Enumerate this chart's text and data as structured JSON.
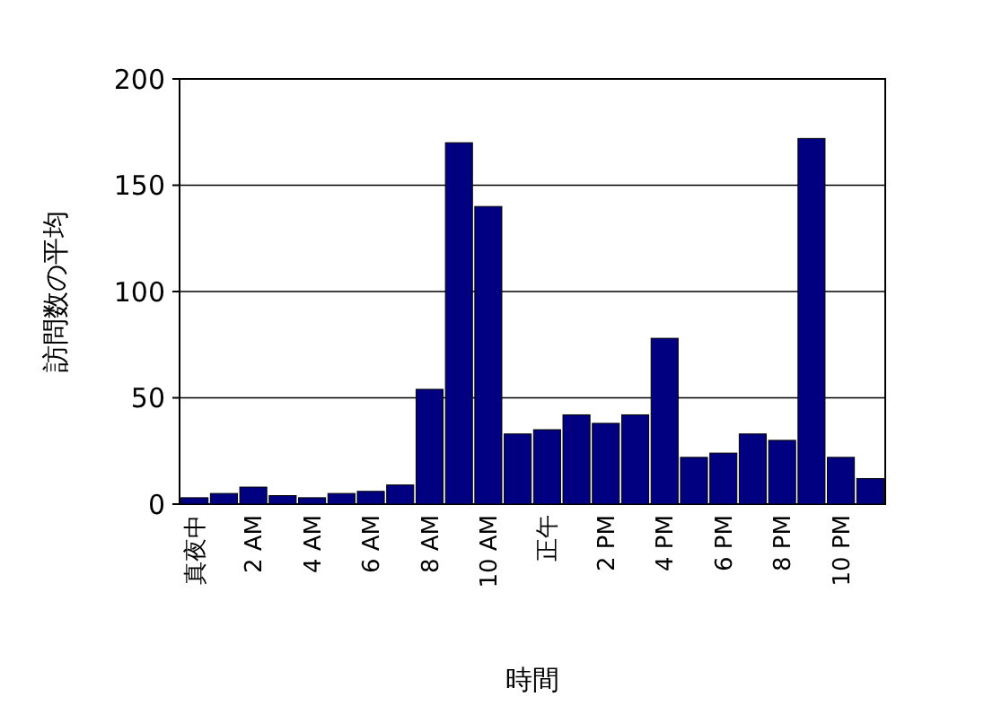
{
  "chart_data": {
    "type": "bar",
    "xlabel": "時間",
    "ylabel": "訪問数の平均",
    "categories": [
      "真夜中",
      null,
      "2 AM",
      null,
      "4 AM",
      null,
      "6 AM",
      null,
      "8 AM",
      null,
      "10 AM",
      null,
      "正午",
      null,
      "2 PM",
      null,
      "4 PM",
      null,
      "6 PM",
      null,
      "8 PM",
      null,
      "10 PM",
      null
    ],
    "values": [
      3,
      5,
      8,
      4,
      3,
      5,
      6,
      9,
      54,
      170,
      140,
      33,
      35,
      42,
      38,
      42,
      78,
      22,
      24,
      33,
      30,
      172,
      22,
      12
    ],
    "color": "#000080",
    "ylim": [
      0,
      200
    ],
    "yticks": [
      0,
      50,
      100,
      150,
      200
    ],
    "grid": "y"
  }
}
